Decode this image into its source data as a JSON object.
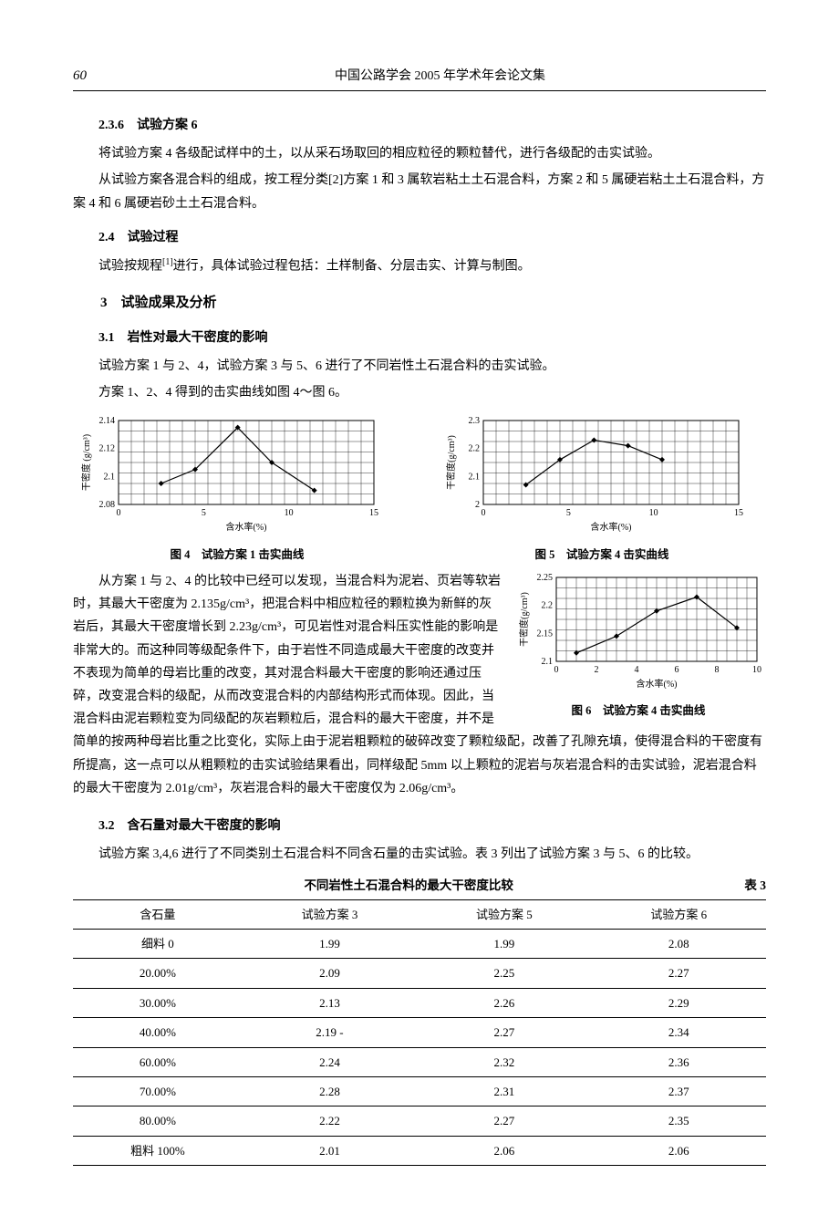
{
  "header": {
    "page_num": "60",
    "title": "中国公路学会 2005 年学术年会论文集"
  },
  "s236": {
    "heading": "2.3.6　试验方案 6",
    "p1": "将试验方案 4 各级配试样中的土，以从采石场取回的相应粒径的颗粒替代，进行各级配的击实试验。",
    "p2": "从试验方案各混合料的组成，按工程分类[2]方案 1 和 3 属软岩粘土土石混合料，方案 2 和 5 属硬岩粘土土石混合料，方案 4 和 6 属硬岩砂土土石混合料。"
  },
  "s24": {
    "heading": "2.4　试验过程",
    "p1_prefix": "试验按规程",
    "p1_ref": "[1]",
    "p1_suffix": "进行，具体试验过程包括：土样制备、分层击实、计算与制图。"
  },
  "s3": {
    "heading": "3　试验成果及分析"
  },
  "s31": {
    "heading": "3.1　岩性对最大干密度的影响",
    "p1": "试验方案 1 与 2、4，试验方案 3 与 5、6 进行了不同岩性土石混合料的击实试验。",
    "p2": "方案 1、2、4 得到的击实曲线如图 4～图 6。",
    "wrap_p1": "从方案 1 与 2、4 的比较中已经可以发现，当混合料为泥岩、页岩等软岩时，其最大干密度为 2.135g/cm³，把混合料中相应粒径的颗粒换为新鲜的灰岩后，其最大干密度增长到 2.23g/cm³，可见岩性对混合料压实性能的影响是非常大的。而这种同等级配条件下，由于岩性不同造成最大干密度的改变并不表现为简单的母岩比重的改变，其对混合料最大干密度的影响还通过压碎，改变混合料的级配，从而改变混合料的内部结构形式而体现。因此，当混合料由泥岩颗粒变为同级配的灰岩颗粒后，混合料的最大干密度，并不是简单的按两种母岩比重之比变化，实际上由于泥岩粗颗粒的破碎改变了颗粒级配，改善了孔隙充填，使得混合料的干密度有所提高，这一点可以从粗颗粒的击实试验结果看出，同样级配 5mm 以上颗粒的泥岩与灰岩混合料的击实试验，泥岩混合料的最大干密度为 2.01g/cm³，灰岩混合料的最大干密度仅为 2.06g/cm³。"
  },
  "s32": {
    "heading": "3.2　含石量对最大干密度的影响",
    "p1": "试验方案 3,4,6 进行了不同类别土石混合料不同含石量的击实试验。表 3 列出了试验方案 3 与 5、6 的比较。"
  },
  "chart4": {
    "type": "line",
    "caption": "图 4　试验方案 1 击实曲线",
    "xlabel": "含水率(%)",
    "ylabel": "干密度 (g/cm³)",
    "xlim": [
      0,
      15
    ],
    "xtick_step": 5,
    "ylim": [
      2.08,
      2.14
    ],
    "yticks": [
      2.08,
      2.1,
      2.12,
      2.14
    ],
    "line_color": "#000000",
    "grid_color": "#000000",
    "background_color": "#ffffff",
    "line_width": 1.2,
    "marker": "diamond",
    "points": [
      [
        2.5,
        2.095
      ],
      [
        4.5,
        2.105
      ],
      [
        7.0,
        2.135
      ],
      [
        9.0,
        2.11
      ],
      [
        11.5,
        2.09
      ]
    ]
  },
  "chart5": {
    "type": "line",
    "caption": "图 5　试验方案 4 击实曲线",
    "xlabel": "含水率(%)",
    "ylabel": "干密度(g/cm³)",
    "xlim": [
      0,
      15
    ],
    "xtick_step": 5,
    "ylim": [
      2,
      2.3
    ],
    "yticks": [
      2,
      2.1,
      2.2,
      2.3
    ],
    "line_color": "#000000",
    "grid_color": "#000000",
    "background_color": "#ffffff",
    "line_width": 1.2,
    "marker": "diamond",
    "points": [
      [
        2.5,
        2.07
      ],
      [
        4.5,
        2.16
      ],
      [
        6.5,
        2.23
      ],
      [
        8.5,
        2.21
      ],
      [
        10.5,
        2.16
      ]
    ]
  },
  "chart6": {
    "type": "line",
    "caption": "图 6　试验方案 4 击实曲线",
    "xlabel": "含水率(%)",
    "ylabel": "干密度(g/cm³)",
    "xlim": [
      0.0,
      10.0
    ],
    "xticks": [
      0.0,
      2.0,
      4.0,
      6.0,
      8.0,
      10.0
    ],
    "ylim": [
      2.1,
      2.25
    ],
    "yticks": [
      2.1,
      2.15,
      2.2,
      2.25
    ],
    "line_color": "#000000",
    "grid_color": "#000000",
    "background_color": "#ffffff",
    "line_width": 1.2,
    "marker": "diamond",
    "points": [
      [
        1.0,
        2.115
      ],
      [
        3.0,
        2.145
      ],
      [
        5.0,
        2.19
      ],
      [
        7.0,
        2.215
      ],
      [
        9.0,
        2.16
      ]
    ]
  },
  "table3": {
    "title": "不同岩性土石混合料的最大干密度比较",
    "number": "表 3",
    "columns": [
      "含石量",
      "试验方案 3",
      "试验方案 5",
      "试验方案 6"
    ],
    "rows": [
      [
        "细料 0",
        "1.99",
        "1.99",
        "2.08"
      ],
      [
        "20.00%",
        "2.09",
        "2.25",
        "2.27"
      ],
      [
        "30.00%",
        "2.13",
        "2.26",
        "2.29"
      ],
      [
        "40.00%",
        "2.19 -",
        "2.27",
        "2.34"
      ],
      [
        "60.00%",
        "2.24",
        "2.32",
        "2.36"
      ],
      [
        "70.00%",
        "2.28",
        "2.31",
        "2.37"
      ],
      [
        "80.00%",
        "2.22",
        "2.27",
        "2.35"
      ],
      [
        "粗料 100%",
        "2.01",
        "2.06",
        "2.06"
      ]
    ]
  }
}
